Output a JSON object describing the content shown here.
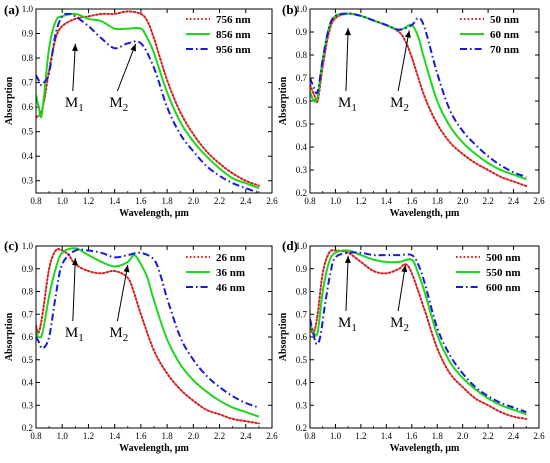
{
  "figure": {
    "colors": {
      "series1": "#d62020",
      "series2": "#1ed61e",
      "series3": "#1a1ad6"
    },
    "dashes": {
      "series1": "dotted",
      "series2": "solid",
      "series3": "dashdot"
    }
  },
  "chart_data": [
    {
      "panel": "(a)",
      "type": "line",
      "xlabel": "Wavelength, µm",
      "ylabel": "Absorption",
      "xlim": [
        0.8,
        2.6
      ],
      "ylim": [
        0.25,
        1.0
      ],
      "xticks": [
        "0.8",
        "1.0",
        "1.2",
        "1.4",
        "1.6",
        "1.8",
        "2.0",
        "2.2",
        "2.4",
        "2.6"
      ],
      "yticks": [
        "0.3",
        "0.4",
        "0.5",
        "0.6",
        "0.7",
        "0.8",
        "0.9",
        "1.0"
      ],
      "legend_position": "top-right",
      "annotations": [
        {
          "main": "M",
          "sub": "1",
          "point": [
            1.1,
            0.87
          ]
        },
        {
          "main": "M",
          "sub": "2",
          "point": [
            1.56,
            0.87
          ]
        }
      ],
      "series": [
        {
          "name": "756 nm",
          "style": "dotted",
          "x": [
            0.8,
            0.83,
            0.86,
            0.9,
            0.95,
            1.0,
            1.1,
            1.2,
            1.3,
            1.4,
            1.5,
            1.6,
            1.65,
            1.7,
            1.8,
            1.9,
            2.0,
            2.1,
            2.2,
            2.3,
            2.4,
            2.5
          ],
          "y": [
            0.56,
            0.57,
            0.62,
            0.75,
            0.88,
            0.93,
            0.96,
            0.97,
            0.98,
            0.98,
            0.99,
            0.98,
            0.95,
            0.88,
            0.71,
            0.58,
            0.49,
            0.42,
            0.37,
            0.33,
            0.3,
            0.28
          ]
        },
        {
          "name": "856 nm",
          "style": "solid",
          "x": [
            0.8,
            0.82,
            0.84,
            0.86,
            0.9,
            0.95,
            1.0,
            1.1,
            1.2,
            1.3,
            1.4,
            1.5,
            1.6,
            1.65,
            1.7,
            1.8,
            1.9,
            2.0,
            2.1,
            2.2,
            2.3,
            2.4,
            2.5
          ],
          "y": [
            0.65,
            0.6,
            0.56,
            0.64,
            0.84,
            0.95,
            0.97,
            0.98,
            0.96,
            0.95,
            0.92,
            0.92,
            0.92,
            0.88,
            0.82,
            0.66,
            0.54,
            0.46,
            0.4,
            0.35,
            0.31,
            0.29,
            0.27
          ]
        },
        {
          "name": "956 nm",
          "style": "dashdot",
          "x": [
            0.8,
            0.82,
            0.84,
            0.86,
            0.9,
            0.95,
            1.0,
            1.05,
            1.1,
            1.2,
            1.3,
            1.4,
            1.5,
            1.6,
            1.7,
            1.8,
            1.9,
            2.0,
            2.1,
            2.2,
            2.3,
            2.4,
            2.5
          ],
          "y": [
            0.73,
            0.71,
            0.69,
            0.7,
            0.74,
            0.9,
            0.97,
            0.98,
            0.97,
            0.93,
            0.88,
            0.84,
            0.86,
            0.86,
            0.76,
            0.6,
            0.49,
            0.42,
            0.36,
            0.32,
            0.29,
            0.27,
            0.25
          ]
        }
      ]
    },
    {
      "panel": "(b)",
      "type": "line",
      "xlabel": "Wavelength, µm",
      "ylabel": "Absorption",
      "xlim": [
        0.8,
        2.6
      ],
      "ylim": [
        0.2,
        1.0
      ],
      "xticks": [
        "0.8",
        "1.0",
        "1.2",
        "1.4",
        "1.6",
        "1.8",
        "2.0",
        "2.2",
        "2.4",
        "2.6"
      ],
      "yticks": [
        "0.2",
        "0.3",
        "0.4",
        "0.5",
        "0.6",
        "0.7",
        "0.8",
        "0.9",
        "1.0"
      ],
      "legend_position": "top-right",
      "annotations": [
        {
          "main": "M",
          "sub": "1",
          "point": [
            1.1,
            0.93
          ]
        },
        {
          "main": "M",
          "sub": "2",
          "point": [
            1.58,
            0.92
          ]
        }
      ],
      "series": [
        {
          "name": "50 nm",
          "style": "dotted",
          "x": [
            0.8,
            0.83,
            0.86,
            0.9,
            0.95,
            1.0,
            1.1,
            1.2,
            1.3,
            1.4,
            1.5,
            1.55,
            1.6,
            1.7,
            1.8,
            1.9,
            2.0,
            2.1,
            2.2,
            2.3,
            2.4,
            2.5
          ],
          "y": [
            0.67,
            0.63,
            0.6,
            0.75,
            0.9,
            0.96,
            0.98,
            0.97,
            0.95,
            0.93,
            0.9,
            0.86,
            0.79,
            0.62,
            0.5,
            0.42,
            0.37,
            0.33,
            0.3,
            0.27,
            0.25,
            0.23
          ]
        },
        {
          "name": "60 nm",
          "style": "solid",
          "x": [
            0.8,
            0.83,
            0.86,
            0.9,
            0.95,
            1.0,
            1.1,
            1.2,
            1.3,
            1.4,
            1.5,
            1.55,
            1.6,
            1.65,
            1.7,
            1.8,
            1.9,
            2.0,
            2.1,
            2.2,
            2.3,
            2.4,
            2.5
          ],
          "y": [
            0.64,
            0.6,
            0.62,
            0.78,
            0.92,
            0.97,
            0.98,
            0.97,
            0.95,
            0.93,
            0.91,
            0.92,
            0.93,
            0.88,
            0.78,
            0.6,
            0.49,
            0.42,
            0.37,
            0.33,
            0.3,
            0.28,
            0.26
          ]
        },
        {
          "name": "70 nm",
          "style": "dashdot",
          "x": [
            0.8,
            0.83,
            0.86,
            0.9,
            0.95,
            1.0,
            1.1,
            1.2,
            1.3,
            1.4,
            1.5,
            1.6,
            1.65,
            1.7,
            1.8,
            1.9,
            2.0,
            2.1,
            2.2,
            2.3,
            2.4,
            2.5
          ],
          "y": [
            0.7,
            0.66,
            0.64,
            0.78,
            0.92,
            0.97,
            0.98,
            0.97,
            0.95,
            0.93,
            0.91,
            0.93,
            0.96,
            0.92,
            0.72,
            0.56,
            0.47,
            0.41,
            0.36,
            0.32,
            0.29,
            0.27
          ]
        }
      ]
    },
    {
      "panel": "(c)",
      "type": "line",
      "xlabel": "Wavelength, µm",
      "ylabel": "Absorption",
      "xlim": [
        0.8,
        2.6
      ],
      "ylim": [
        0.2,
        1.0
      ],
      "xticks": [
        "0.8",
        "1.0",
        "1.2",
        "1.4",
        "1.6",
        "1.8",
        "2.0",
        "2.2",
        "2.4",
        "2.6"
      ],
      "yticks": [
        "0.2",
        "0.3",
        "0.4",
        "0.5",
        "0.6",
        "0.7",
        "0.8",
        "0.9",
        "1.0"
      ],
      "legend_position": "top-right",
      "annotations": [
        {
          "main": "M",
          "sub": "1",
          "point": [
            1.1,
            0.96
          ]
        },
        {
          "main": "M",
          "sub": "2",
          "point": [
            1.5,
            0.93
          ]
        }
      ],
      "series": [
        {
          "name": "26 nm",
          "style": "dotted",
          "x": [
            0.8,
            0.82,
            0.85,
            0.9,
            0.95,
            1.0,
            1.05,
            1.1,
            1.2,
            1.3,
            1.4,
            1.5,
            1.55,
            1.6,
            1.7,
            1.8,
            1.9,
            2.0,
            2.1,
            2.2,
            2.3,
            2.4,
            2.5
          ],
          "y": [
            0.65,
            0.62,
            0.7,
            0.9,
            0.98,
            0.98,
            0.96,
            0.92,
            0.89,
            0.88,
            0.89,
            0.86,
            0.79,
            0.7,
            0.54,
            0.44,
            0.37,
            0.32,
            0.28,
            0.26,
            0.24,
            0.23,
            0.22
          ]
        },
        {
          "name": "36 nm",
          "style": "solid",
          "x": [
            0.8,
            0.82,
            0.85,
            0.9,
            0.95,
            1.0,
            1.1,
            1.2,
            1.3,
            1.4,
            1.5,
            1.55,
            1.6,
            1.65,
            1.7,
            1.8,
            1.9,
            2.0,
            2.1,
            2.2,
            2.3,
            2.4,
            2.5
          ],
          "y": [
            0.63,
            0.6,
            0.62,
            0.78,
            0.9,
            0.97,
            0.99,
            0.96,
            0.93,
            0.91,
            0.93,
            0.96,
            0.92,
            0.86,
            0.76,
            0.59,
            0.48,
            0.41,
            0.36,
            0.32,
            0.29,
            0.27,
            0.25
          ]
        },
        {
          "name": "46 nm",
          "style": "dashdot",
          "x": [
            0.8,
            0.82,
            0.85,
            0.9,
            0.95,
            1.0,
            1.1,
            1.2,
            1.3,
            1.4,
            1.5,
            1.6,
            1.7,
            1.75,
            1.8,
            1.9,
            2.0,
            2.1,
            2.2,
            2.3,
            2.4,
            2.5
          ],
          "y": [
            0.6,
            0.58,
            0.55,
            0.6,
            0.78,
            0.92,
            0.98,
            0.98,
            0.97,
            0.95,
            0.96,
            0.97,
            0.94,
            0.87,
            0.77,
            0.6,
            0.5,
            0.43,
            0.38,
            0.34,
            0.31,
            0.29
          ]
        }
      ]
    },
    {
      "panel": "(d)",
      "type": "line",
      "xlabel": "Wavelength, µm",
      "ylabel": "Absorption",
      "xlim": [
        0.8,
        2.6
      ],
      "ylim": [
        0.2,
        1.0
      ],
      "xticks": [
        "0.8",
        "1.0",
        "1.2",
        "1.4",
        "1.6",
        "1.8",
        "2.0",
        "2.2",
        "2.4",
        "2.6"
      ],
      "yticks": [
        "0.2",
        "0.3",
        "0.4",
        "0.5",
        "0.6",
        "0.7",
        "0.8",
        "0.9",
        "1.0"
      ],
      "legend_position": "top-right",
      "annotations": [
        {
          "main": "M",
          "sub": "1",
          "point": [
            1.1,
            0.97
          ]
        },
        {
          "main": "M",
          "sub": "2",
          "point": [
            1.55,
            0.93
          ]
        }
      ],
      "series": [
        {
          "name": "500 nm",
          "style": "dotted",
          "x": [
            0.8,
            0.83,
            0.86,
            0.9,
            0.95,
            1.0,
            1.1,
            1.2,
            1.3,
            1.4,
            1.5,
            1.55,
            1.6,
            1.7,
            1.8,
            1.9,
            2.0,
            2.1,
            2.2,
            2.3,
            2.4,
            2.5
          ],
          "y": [
            0.64,
            0.62,
            0.7,
            0.88,
            0.97,
            0.98,
            0.97,
            0.93,
            0.89,
            0.88,
            0.9,
            0.92,
            0.88,
            0.72,
            0.55,
            0.44,
            0.38,
            0.33,
            0.3,
            0.27,
            0.25,
            0.24
          ]
        },
        {
          "name": "550 nm",
          "style": "solid",
          "x": [
            0.8,
            0.83,
            0.86,
            0.9,
            0.95,
            1.0,
            1.1,
            1.2,
            1.3,
            1.4,
            1.5,
            1.6,
            1.65,
            1.7,
            1.8,
            1.9,
            2.0,
            2.1,
            2.2,
            2.3,
            2.4,
            2.5
          ],
          "y": [
            0.66,
            0.62,
            0.62,
            0.8,
            0.93,
            0.97,
            0.98,
            0.96,
            0.94,
            0.93,
            0.93,
            0.94,
            0.88,
            0.8,
            0.61,
            0.49,
            0.42,
            0.37,
            0.33,
            0.3,
            0.28,
            0.26
          ]
        },
        {
          "name": "600 nm",
          "style": "dashdot",
          "x": [
            0.8,
            0.82,
            0.85,
            0.88,
            0.92,
            0.96,
            1.0,
            1.1,
            1.2,
            1.3,
            1.4,
            1.5,
            1.6,
            1.65,
            1.7,
            1.8,
            1.9,
            2.0,
            2.1,
            2.2,
            2.3,
            2.4,
            2.5
          ],
          "y": [
            0.68,
            0.63,
            0.57,
            0.6,
            0.75,
            0.88,
            0.95,
            0.97,
            0.97,
            0.96,
            0.96,
            0.96,
            0.96,
            0.92,
            0.84,
            0.64,
            0.52,
            0.44,
            0.38,
            0.34,
            0.31,
            0.29,
            0.27
          ]
        }
      ]
    }
  ]
}
